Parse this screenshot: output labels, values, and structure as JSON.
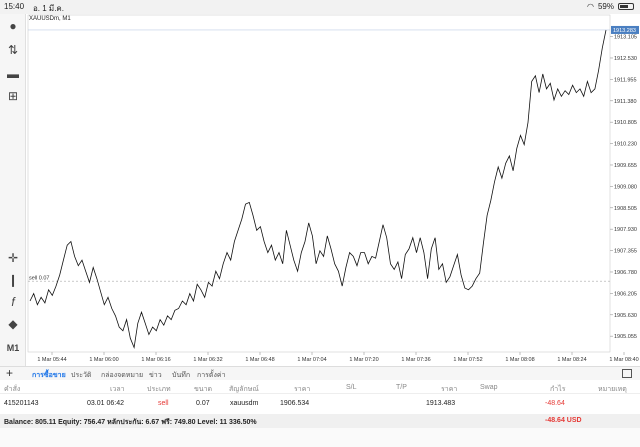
{
  "status": {
    "time": "15:40",
    "date": "อ. 1 มี.ค.",
    "battery": "59%"
  },
  "chart": {
    "symbol": "XAUUSDm, M1",
    "current_price": "1913.283",
    "sell_line_label": "sell 0.07"
  },
  "chart_data": {
    "type": "line",
    "xlabel": "",
    "ylabel": "",
    "x_ticks": [
      "1 Mar 05:44",
      "1 Mar 06:00",
      "1 Mar 06:16",
      "1 Mar 06:32",
      "1 Mar 06:48",
      "1 Mar 07:04",
      "1 Mar 07:20",
      "1 Mar 07:36",
      "1 Mar 07:52",
      "1 Mar 08:08",
      "1 Mar 08:24",
      "1 Mar 08:40"
    ],
    "y_ticks": [
      "1913.105",
      "1912.530",
      "1911.955",
      "1911.380",
      "1910.805",
      "1910.230",
      "1909.655",
      "1909.080",
      "1908.505",
      "1907.930",
      "1907.355",
      "1906.780",
      "1906.205",
      "1905.630",
      "1905.055"
    ],
    "ylim": [
      1904.63,
      1913.47
    ],
    "sell_level": 1906.534,
    "series": [
      {
        "values": [
          1906.0,
          1906.2,
          1905.9,
          1906.1,
          1905.95,
          1906.3,
          1906.15,
          1906.4,
          1906.7,
          1907.1,
          1907.5,
          1907.6,
          1907.2,
          1906.95,
          1907.1,
          1906.8,
          1906.5,
          1906.9,
          1906.6,
          1906.25,
          1905.9,
          1906.1,
          1905.8,
          1905.6,
          1905.3,
          1905.2,
          1905.5,
          1905.0,
          1904.75,
          1905.4,
          1905.7,
          1905.4,
          1905.1,
          1905.3,
          1905.2,
          1905.5,
          1905.35,
          1905.6,
          1905.5,
          1905.75,
          1905.8,
          1906.0,
          1905.9,
          1906.2,
          1906.0,
          1906.45,
          1906.3,
          1906.1,
          1906.5,
          1906.4,
          1906.8,
          1906.6,
          1907.0,
          1907.3,
          1907.1,
          1907.6,
          1907.9,
          1908.2,
          1908.6,
          1908.65,
          1908.3,
          1907.9,
          1908.0,
          1907.6,
          1907.3,
          1907.5,
          1907.1,
          1907.3,
          1907.0,
          1907.9,
          1907.5,
          1907.1,
          1906.8,
          1907.3,
          1907.6,
          1908.1,
          1907.75,
          1907.0,
          1907.35,
          1907.2,
          1907.75,
          1907.4,
          1907.0,
          1906.8,
          1906.4,
          1906.9,
          1907.3,
          1907.2,
          1906.95,
          1907.3,
          1907.3,
          1907.0,
          1907.2,
          1907.15,
          1907.6,
          1908.05,
          1907.7,
          1907.0,
          1906.85,
          1907.05,
          1906.6,
          1907.25,
          1907.4,
          1907.7,
          1907.3,
          1907.7,
          1907.3,
          1906.6,
          1907.4,
          1907.7,
          1906.85,
          1907.0,
          1906.5,
          1906.65,
          1906.95,
          1907.25,
          1906.7,
          1906.35,
          1906.3,
          1906.4,
          1906.6,
          1906.75,
          1907.55,
          1908.3,
          1908.7,
          1909.2,
          1909.6,
          1909.3,
          1909.7,
          1909.9,
          1909.5,
          1910.1,
          1910.45,
          1910.2,
          1910.8,
          1911.9,
          1912.05,
          1911.6,
          1912.1,
          1911.7,
          1911.85,
          1911.4,
          1911.7,
          1911.5,
          1911.65,
          1911.55,
          1911.8,
          1911.6,
          1911.7,
          1911.5,
          1911.9,
          1911.6,
          1911.7,
          1912.2,
          1912.8,
          1913.283
        ]
      }
    ]
  },
  "tabs": {
    "active": "การซื้อขาย",
    "items": [
      "ประวัติ",
      "กล่องจดหมาย",
      "ข่าว",
      "บันทึก",
      "การตั้งค่า"
    ]
  },
  "table": {
    "headers": {
      "order": "คำสั่ง",
      "time": "เวลา",
      "type": "ประเภท",
      "volume": "ขนาด",
      "symbol": "สัญลักษณ์",
      "price": "ราคา",
      "sl": "S/L",
      "tp": "T/P",
      "cur_price": "ราคา",
      "swap": "Swap",
      "profit": "กำไร",
      "comment": "หมายเหตุ"
    },
    "row": {
      "order": "415201143",
      "time": "03.01 06:42",
      "type": "sell",
      "volume": "0.07",
      "symbol": "xauusdm",
      "price": "1906.534",
      "cur_price": "1913.483",
      "profit": "-48.64"
    }
  },
  "balance": {
    "text": "Balance: 805.11 Equity: 756.47 หลักประกัน: 6.67 ฟรี: 749.80 Level: 11 336.50%",
    "pl": "-48.64  USD"
  },
  "colors": {
    "accent": "#1a73e8",
    "loss": "#e53935",
    "price_tag": "#4a7fc1"
  }
}
